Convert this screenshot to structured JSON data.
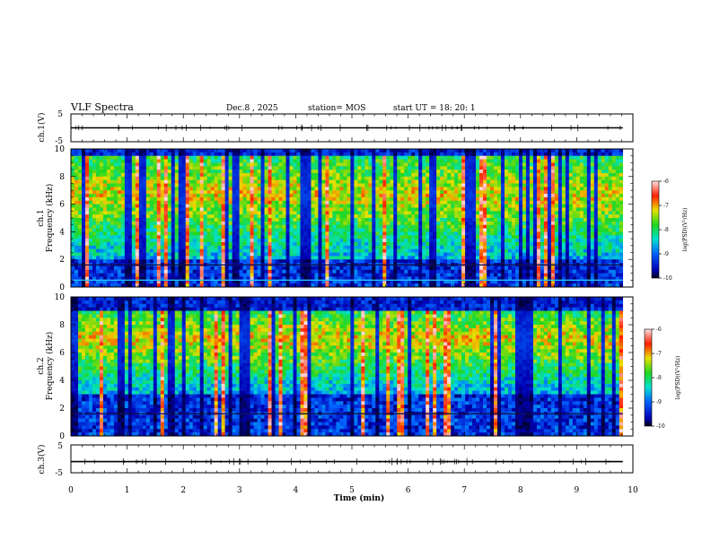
{
  "header": {
    "title": "VLF Spectra",
    "date": "Dec.8 , 2025",
    "station": "station= MOS",
    "start": "start UT =  18: 20: 1"
  },
  "chart_data": [
    {
      "type": "line",
      "name": "ch1-voltage",
      "ylabel": "ch.1(V)",
      "ylim": [
        -5,
        5
      ],
      "yticks": [
        "5",
        "-5"
      ],
      "baseline_value": 0
    },
    {
      "type": "heatmap",
      "name": "ch1-spectrogram",
      "ylabel_line1": "ch.1",
      "ylabel_line2": "Frequency (kHz)",
      "ylim": [
        0,
        10
      ],
      "yticks": [
        "0",
        "2",
        "4",
        "6",
        "8",
        "10"
      ],
      "colorbar": {
        "label": "log(PSD)(V²/Hz)",
        "range": [
          -10,
          -6
        ],
        "ticks": [
          "-6",
          "-7",
          "-8",
          "-9",
          "-10"
        ]
      },
      "band_khz": [
        2,
        9.5
      ],
      "lines_khz": [
        0.5,
        1.6
      ]
    },
    {
      "type": "heatmap",
      "name": "ch2-spectrogram",
      "ylabel_line1": "ch.2",
      "ylabel_line2": "Frequency (kHz)",
      "ylim": [
        0,
        10
      ],
      "yticks": [
        "0",
        "2",
        "4",
        "6",
        "8",
        "10"
      ],
      "colorbar": {
        "label": "log(PSD)(V²/Hz)",
        "range": [
          -10,
          -6
        ],
        "ticks": [
          "-6",
          "-7",
          "-8",
          "-9",
          "-10"
        ]
      },
      "band_khz": [
        3,
        9
      ],
      "lines_khz": [
        1.6
      ]
    },
    {
      "type": "line",
      "name": "ch3-voltage",
      "ylabel": "ch.3(V)",
      "ylim": [
        -5,
        5
      ],
      "yticks": [
        "5",
        "-5"
      ],
      "baseline_value": -1
    }
  ],
  "xaxis": {
    "label": "Time (min)",
    "range": [
      0,
      10
    ],
    "ticks": [
      "0",
      "1",
      "2",
      "3",
      "4",
      "5",
      "6",
      "7",
      "8",
      "9",
      "10"
    ],
    "data_end": 9.82
  },
  "colors": {
    "frame": "#000000",
    "background": "#ffffff"
  }
}
